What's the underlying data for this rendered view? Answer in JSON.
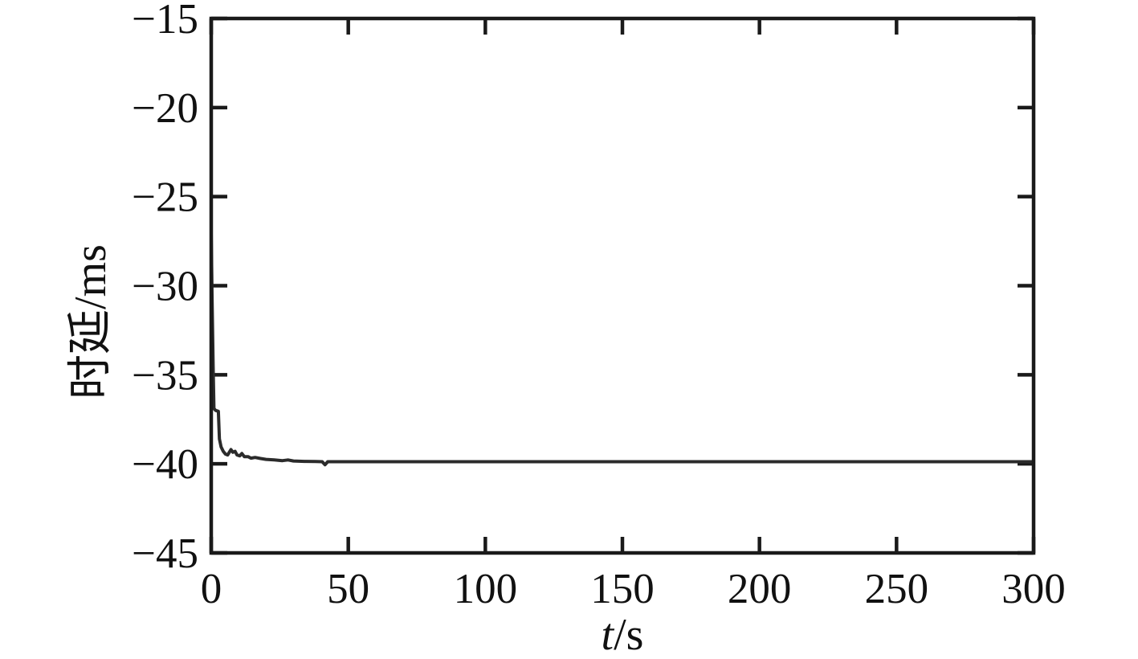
{
  "figure": {
    "background": "#ffffff",
    "axis_color": "#1a1a1a",
    "tick_color": "#1a1a1a",
    "text_color": "#111111"
  },
  "chart_data": {
    "type": "line",
    "title": "",
    "xlabel": "t/s",
    "xlabel_parts": [
      {
        "text": "t",
        "italic": true
      },
      {
        "text": "/s",
        "italic": false
      }
    ],
    "ylabel": "时延/ms",
    "xlim": [
      0,
      300
    ],
    "ylim": [
      -45,
      -15
    ],
    "x_ticks": [
      0,
      50,
      100,
      150,
      200,
      250,
      300
    ],
    "y_ticks": [
      -45,
      -40,
      -35,
      -30,
      -25,
      -20,
      -15
    ],
    "x_tick_labels": [
      "0",
      "50",
      "100",
      "150",
      "200",
      "250",
      "300"
    ],
    "y_tick_labels": [
      "−45",
      "−40",
      "−35",
      "−30",
      "−25",
      "−20",
      "−15"
    ],
    "grid": false,
    "legend_position": "none",
    "box": true,
    "tick_direction": "in",
    "series": [
      {
        "name": "时延",
        "color": "#2b2b2b",
        "marker": "none",
        "points": [
          [
            0,
            -27.1
          ],
          [
            0.3,
            -30.5
          ],
          [
            0.7,
            -34.5
          ],
          [
            1.0,
            -36.9
          ],
          [
            1.6,
            -37.0
          ],
          [
            2.6,
            -37.05
          ],
          [
            3.0,
            -38.6
          ],
          [
            3.6,
            -39.05
          ],
          [
            4.4,
            -39.3
          ],
          [
            5.2,
            -39.45
          ],
          [
            6.0,
            -39.5
          ],
          [
            6.6,
            -39.35
          ],
          [
            7.2,
            -39.2
          ],
          [
            7.9,
            -39.35
          ],
          [
            8.7,
            -39.3
          ],
          [
            9.4,
            -39.5
          ],
          [
            10.4,
            -39.55
          ],
          [
            11.2,
            -39.42
          ],
          [
            12.1,
            -39.6
          ],
          [
            13.5,
            -39.6
          ],
          [
            14.5,
            -39.68
          ],
          [
            16,
            -39.64
          ],
          [
            18,
            -39.7
          ],
          [
            20,
            -39.75
          ],
          [
            23,
            -39.78
          ],
          [
            26,
            -39.82
          ],
          [
            28,
            -39.78
          ],
          [
            30,
            -39.84
          ],
          [
            34,
            -39.86
          ],
          [
            38,
            -39.87
          ],
          [
            40.5,
            -39.88
          ],
          [
            41.5,
            -40.05
          ],
          [
            42.5,
            -39.88
          ],
          [
            48,
            -39.88
          ],
          [
            60,
            -39.88
          ],
          [
            80,
            -39.88
          ],
          [
            120,
            -39.88
          ],
          [
            160,
            -39.88
          ],
          [
            200,
            -39.88
          ],
          [
            240,
            -39.88
          ],
          [
            300,
            -39.88
          ]
        ]
      }
    ]
  }
}
